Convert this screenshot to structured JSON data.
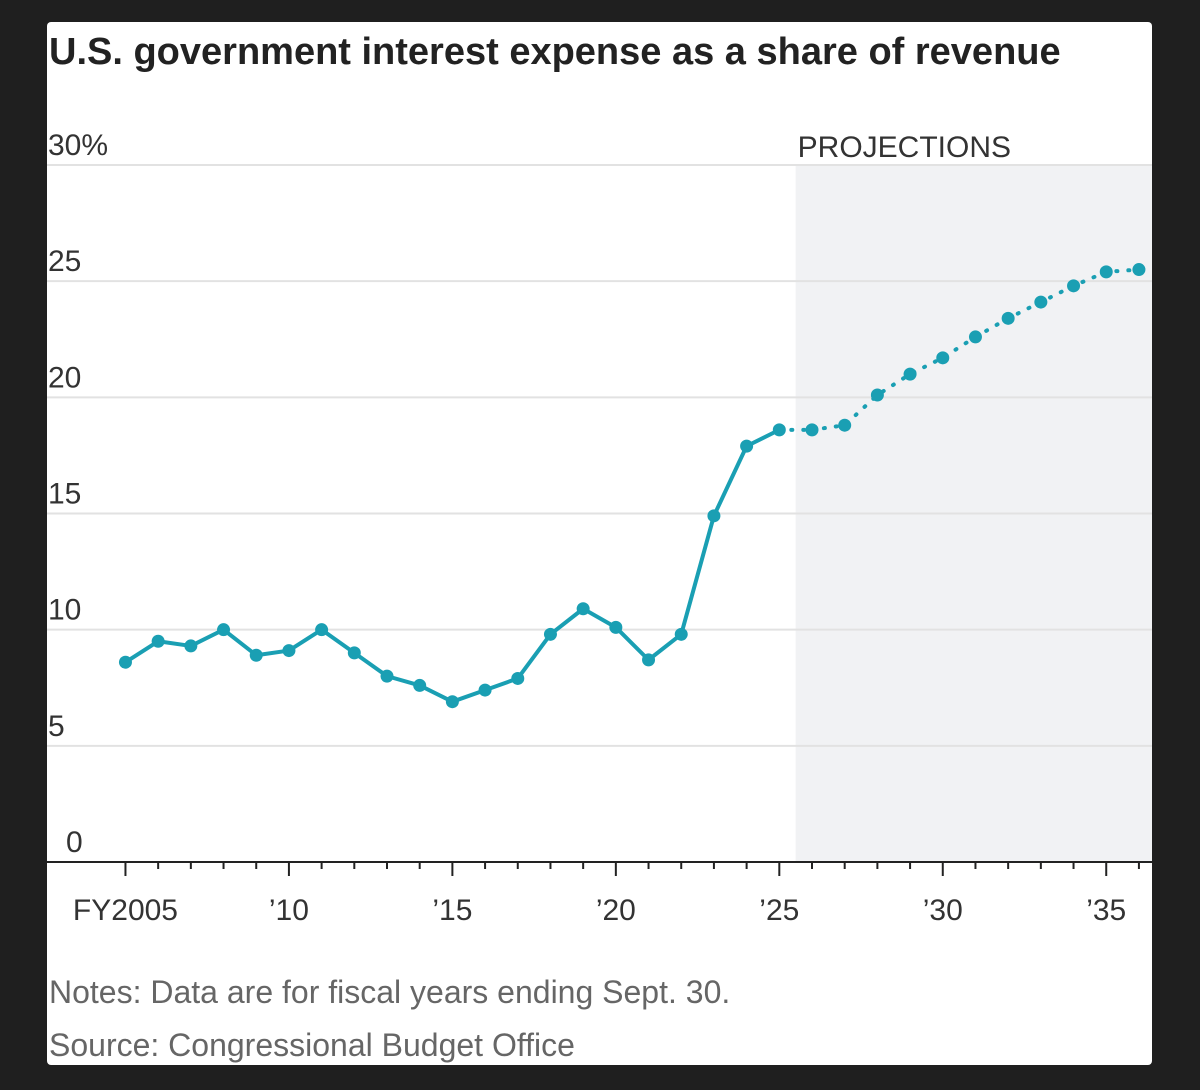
{
  "chart_data": {
    "type": "line",
    "title": "U.S. government interest expense as a share of revenue",
    "notes": "Notes: Data are for fiscal years ending Sept. 30.",
    "source": "Source: Congressional Budget Office",
    "x": [
      2005,
      2006,
      2007,
      2008,
      2009,
      2010,
      2011,
      2012,
      2013,
      2014,
      2015,
      2016,
      2017,
      2018,
      2019,
      2020,
      2021,
      2022,
      2023,
      2024,
      2025,
      2026,
      2027,
      2028,
      2029,
      2030,
      2031,
      2032,
      2033,
      2034,
      2035,
      2036
    ],
    "series": [
      {
        "color": "#1a9fb3",
        "style": "solid",
        "values": [
          8.6,
          9.5,
          9.3,
          10.0,
          8.9,
          9.1,
          10.0,
          9.0,
          8.0,
          7.6,
          6.9,
          7.4,
          7.9,
          9.8,
          10.9,
          10.1,
          8.7,
          9.8,
          14.9,
          17.9,
          18.6,
          null,
          null,
          null,
          null,
          null,
          null,
          null,
          null,
          null,
          null,
          null
        ]
      },
      {
        "color": "#1a9fb3",
        "style": "dotted",
        "values": [
          null,
          null,
          null,
          null,
          null,
          null,
          null,
          null,
          null,
          null,
          null,
          null,
          null,
          null,
          null,
          null,
          null,
          null,
          null,
          null,
          null,
          18.6,
          18.8,
          20.1,
          21.0,
          21.7,
          22.6,
          23.4,
          24.1,
          24.8,
          25.4,
          25.5
        ]
      }
    ],
    "shaded_region": {
      "label": "PROJECTIONS",
      "from": 2025.5,
      "color": "#f1f2f4"
    },
    "xlim": [
      2002.6,
      2036.4
    ],
    "xticks": [
      {
        "value": 2005,
        "label": "FY2005"
      },
      {
        "value": 2010,
        "label": "’10"
      },
      {
        "value": 2015,
        "label": "’15"
      },
      {
        "value": 2020,
        "label": "’20"
      },
      {
        "value": 2025,
        "label": "’25"
      },
      {
        "value": 2030,
        "label": "’30"
      },
      {
        "value": 2035,
        "label": "’35"
      }
    ],
    "minor_xticks": [
      2006,
      2007,
      2008,
      2009,
      2011,
      2012,
      2013,
      2014,
      2016,
      2017,
      2018,
      2019,
      2021,
      2022,
      2023,
      2024,
      2026,
      2027,
      2028,
      2029,
      2031,
      2032,
      2033,
      2034,
      2036
    ],
    "ylim": [
      0,
      30
    ],
    "yticks": [
      0,
      5,
      10,
      15,
      20,
      25,
      {
        "value": 30,
        "label": "30%"
      }
    ],
    "grid": true
  }
}
